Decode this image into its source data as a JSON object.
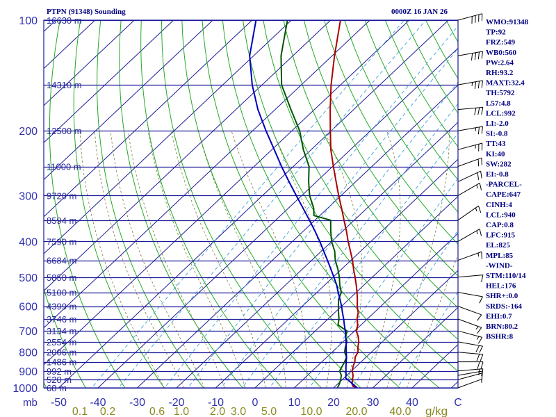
{
  "header": {
    "title": "PTPN (91348) Sounding",
    "datetime": "0000Z 16 JAN 26"
  },
  "chart_data": {
    "type": "line",
    "ylabel": "mb",
    "mixing_ratio_unit": "g/kg",
    "pressure_ticks": [
      "100",
      "200",
      "300",
      "400",
      "500",
      "600",
      "700",
      "800",
      "900",
      "1000"
    ],
    "temperature_ticks": [
      "-50",
      "-40",
      "-30",
      "-20",
      "-10",
      "0",
      "10",
      "20",
      "30",
      "40",
      "C"
    ],
    "mixing_ratio_labels": [
      "0.1",
      "0.2",
      "0.6",
      "1.0",
      "2.0",
      "3.0",
      "5.0",
      "10.0",
      "20.0",
      "40.0"
    ],
    "height_labels": [
      {
        "p": 100,
        "label": "16630 m"
      },
      {
        "p": 150,
        "label": "14310 m"
      },
      {
        "p": 200,
        "label": "12500 m"
      },
      {
        "p": 250,
        "label": "11000 m"
      },
      {
        "p": 300,
        "label": "9720 m"
      },
      {
        "p": 350,
        "label": "8594 m"
      },
      {
        "p": 400,
        "label": "7590 m"
      },
      {
        "p": 450,
        "label": "6684 m"
      },
      {
        "p": 500,
        "label": "5850 m"
      },
      {
        "p": 550,
        "label": "5100 m"
      },
      {
        "p": 600,
        "label": "4399 m"
      },
      {
        "p": 650,
        "label": "3746 m"
      },
      {
        "p": 700,
        "label": "3134 m"
      },
      {
        "p": 750,
        "label": "2554 m"
      },
      {
        "p": 800,
        "label": "2006 m"
      },
      {
        "p": 850,
        "label": "1486 m"
      },
      {
        "p": 900,
        "label": "992 m"
      },
      {
        "p": 950,
        "label": "520 m"
      },
      {
        "p": 1000,
        "label": "68 m"
      }
    ],
    "series": [
      {
        "name": "temperature",
        "color": "#aa0000",
        "points": [
          [
            1000,
            26
          ],
          [
            990,
            24.5
          ],
          [
            975,
            23.6
          ],
          [
            950,
            22.6
          ],
          [
            925,
            21.6
          ],
          [
            900,
            20.2
          ],
          [
            875,
            19.2
          ],
          [
            850,
            18.4
          ],
          [
            825,
            17.2
          ],
          [
            800,
            16.6
          ],
          [
            775,
            15.2
          ],
          [
            750,
            14.0
          ],
          [
            725,
            12.4
          ],
          [
            700,
            10.4
          ],
          [
            675,
            9.2
          ],
          [
            650,
            7.4
          ],
          [
            625,
            6.0
          ],
          [
            600,
            4.0
          ],
          [
            575,
            2.2
          ],
          [
            550,
            0.2
          ],
          [
            525,
            -2.0
          ],
          [
            500,
            -4.4
          ],
          [
            475,
            -7.0
          ],
          [
            450,
            -9.6
          ],
          [
            425,
            -12.6
          ],
          [
            400,
            -15.8
          ],
          [
            375,
            -19.0
          ],
          [
            350,
            -22.6
          ],
          [
            325,
            -26.4
          ],
          [
            300,
            -30.6
          ],
          [
            275,
            -35.0
          ],
          [
            250,
            -39.8
          ],
          [
            225,
            -45.0
          ],
          [
            200,
            -50.2
          ],
          [
            175,
            -56.0
          ],
          [
            150,
            -62.4
          ],
          [
            125,
            -69.4
          ],
          [
            100,
            -77.5
          ]
        ]
      },
      {
        "name": "dewpoint",
        "color": "#005500",
        "points": [
          [
            1000,
            21.0
          ],
          [
            975,
            20.4
          ],
          [
            950,
            19.6
          ],
          [
            925,
            18.6
          ],
          [
            900,
            17.0
          ],
          [
            875,
            16.4
          ],
          [
            850,
            15.8
          ],
          [
            825,
            15.0
          ],
          [
            800,
            13.2
          ],
          [
            775,
            12.0
          ],
          [
            750,
            11.0
          ],
          [
            725,
            9.2
          ],
          [
            700,
            8.0
          ],
          [
            675,
            4.2
          ],
          [
            650,
            2.8
          ],
          [
            625,
            1.0
          ],
          [
            600,
            -0.8
          ],
          [
            575,
            -2.6
          ],
          [
            550,
            -3.8
          ],
          [
            525,
            -6.2
          ],
          [
            500,
            -8.4
          ],
          [
            475,
            -11.0
          ],
          [
            450,
            -14.0
          ],
          [
            425,
            -16.6
          ],
          [
            400,
            -20.0
          ],
          [
            375,
            -23.0
          ],
          [
            350,
            -26.0
          ],
          [
            340,
            -31.5
          ],
          [
            325,
            -33.5
          ],
          [
            300,
            -38.0
          ],
          [
            275,
            -42.0
          ],
          [
            250,
            -46.0
          ],
          [
            225,
            -52.0
          ],
          [
            200,
            -58.0
          ],
          [
            175,
            -66.0
          ],
          [
            150,
            -75.0
          ],
          [
            125,
            -83.0
          ],
          [
            100,
            -91.0
          ]
        ]
      },
      {
        "name": "parcel",
        "color": "#0000bb",
        "points": [
          [
            1000,
            26
          ],
          [
            940,
            20.4
          ],
          [
            925,
            19.8
          ],
          [
            900,
            18.6
          ],
          [
            875,
            17.4
          ],
          [
            850,
            16.2
          ],
          [
            825,
            15.0
          ],
          [
            800,
            13.6
          ],
          [
            775,
            12.2
          ],
          [
            750,
            10.8
          ],
          [
            725,
            9.2
          ],
          [
            700,
            7.6
          ],
          [
            675,
            5.8
          ],
          [
            650,
            4.0
          ],
          [
            625,
            2.0
          ],
          [
            600,
            0.0
          ],
          [
            575,
            -2.2
          ],
          [
            550,
            -4.6
          ],
          [
            525,
            -7.0
          ],
          [
            500,
            -9.8
          ],
          [
            475,
            -12.8
          ],
          [
            450,
            -16.0
          ],
          [
            425,
            -19.4
          ],
          [
            400,
            -23.0
          ],
          [
            375,
            -27.0
          ],
          [
            350,
            -31.4
          ],
          [
            325,
            -36.2
          ],
          [
            300,
            -41.4
          ],
          [
            275,
            -47.0
          ],
          [
            250,
            -53.0
          ],
          [
            225,
            -59.4
          ],
          [
            200,
            -66.6
          ],
          [
            175,
            -74.4
          ],
          [
            150,
            -82.5
          ],
          [
            125,
            -91.0
          ],
          [
            100,
            -99.0
          ]
        ]
      }
    ],
    "winds": [
      {
        "p": 100,
        "dir": 75,
        "spd": 40
      },
      {
        "p": 125,
        "dir": 80,
        "spd": 40
      },
      {
        "p": 150,
        "dir": 80,
        "spd": 35
      },
      {
        "p": 175,
        "dir": 85,
        "spd": 30
      },
      {
        "p": 200,
        "dir": 80,
        "spd": 25
      },
      {
        "p": 225,
        "dir": 75,
        "spd": 25
      },
      {
        "p": 250,
        "dir": 70,
        "spd": 20
      },
      {
        "p": 275,
        "dir": 65,
        "spd": 20
      },
      {
        "p": 300,
        "dir": 60,
        "spd": 15
      },
      {
        "p": 350,
        "dir": 55,
        "spd": 15
      },
      {
        "p": 400,
        "dir": 60,
        "spd": 15
      },
      {
        "p": 450,
        "dir": 70,
        "spd": 15
      },
      {
        "p": 500,
        "dir": 85,
        "spd": 10
      },
      {
        "p": 550,
        "dir": 100,
        "spd": 10
      },
      {
        "p": 600,
        "dir": 110,
        "spd": 10
      },
      {
        "p": 650,
        "dir": 110,
        "spd": 15
      },
      {
        "p": 700,
        "dir": 105,
        "spd": 15
      },
      {
        "p": 750,
        "dir": 100,
        "spd": 20
      },
      {
        "p": 800,
        "dir": 95,
        "spd": 20
      },
      {
        "p": 850,
        "dir": 90,
        "spd": 20
      },
      {
        "p": 900,
        "dir": 85,
        "spd": 15
      },
      {
        "p": 925,
        "dir": 80,
        "spd": 15
      },
      {
        "p": 950,
        "dir": 75,
        "spd": 10
      },
      {
        "p": 1000,
        "dir": 70,
        "spd": 5
      }
    ],
    "indices": [
      "WMO:91348",
      "TP:92",
      "FRZ:549",
      "WB0:560",
      "PW:2.64",
      "RH:93.2",
      "MAXT:32.4",
      "TH:5792",
      "L57:4.8",
      "LCL:992",
      "LI:-2.0",
      "SI:-0.8",
      "TT:43",
      "KI:40",
      "SW:282",
      "EI:-0.8",
      "-PARCEL-",
      "CAPE:647",
      "CINH:4",
      "LCL:940",
      "CAP:0.8",
      "LFC:915",
      "EL:825",
      "MPL:85",
      "-WIND-",
      "STM:110/14",
      "HEL:176",
      "SHR+:0.0",
      "SRDS:-164",
      "EHI:0.7",
      "BRN:80.2",
      "BSHR:8"
    ]
  }
}
